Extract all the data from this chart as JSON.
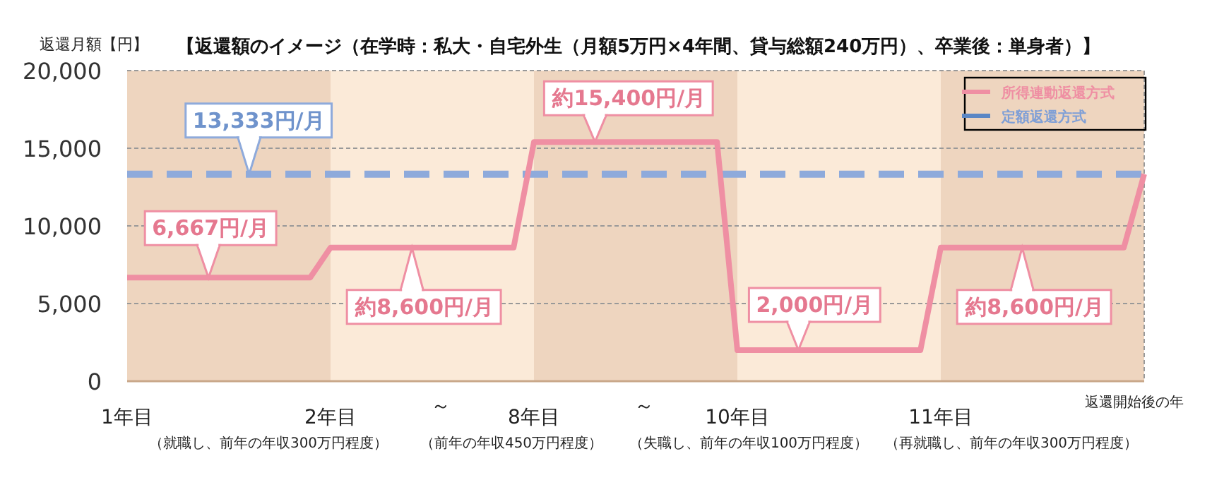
{
  "chart_data": {
    "type": "line",
    "title": "【返還額のイメージ（在学時：私大・自宅外生（月額5万円×4年間、貸与総額240万円）、卒業後：単身者）】",
    "ylabel": "返還月額【円】",
    "xlabel": "返還開始後の年",
    "categories": [
      "1年目",
      null,
      null,
      null,
      null,
      null,
      null,
      null,
      null,
      null,
      "2年目",
      null,
      null,
      null,
      null,
      null,
      null,
      null,
      null,
      null,
      "8年目",
      null,
      null,
      null,
      null,
      null,
      null,
      null,
      null,
      null,
      "10年目",
      null,
      null,
      null,
      null,
      null,
      null,
      null,
      null,
      null,
      "11年目",
      null,
      null,
      null,
      null,
      null,
      null,
      null,
      null,
      null,
      null
    ],
    "ylim": [
      0,
      20000
    ],
    "yticks": [
      {
        "value": 0,
        "label": "0"
      },
      {
        "value": 5000,
        "label": "5,000"
      },
      {
        "value": 10000,
        "label": "10,000"
      },
      {
        "value": 15000,
        "label": "15,000"
      },
      {
        "value": 20000,
        "label": "20,000"
      }
    ],
    "grid": "y",
    "legend": "top right",
    "series": [
      {
        "name": "所得連動返還方式",
        "color": "#ef8fa3",
        "line_style": "solid",
        "values": [
          6667,
          6667,
          6667,
          6667,
          6667,
          6667,
          6667,
          6667,
          6667,
          6667,
          8600,
          8600,
          8600,
          8600,
          8600,
          8600,
          8600,
          8600,
          8600,
          8600,
          15400,
          15400,
          15400,
          15400,
          15400,
          15400,
          15400,
          15400,
          15400,
          15400,
          2000,
          2000,
          2000,
          2000,
          2000,
          2000,
          2000,
          2000,
          2000,
          2000,
          8600,
          8600,
          8600,
          8600,
          8600,
          8600,
          8600,
          8600,
          8600,
          8600,
          13333
        ]
      },
      {
        "name": "定額返還方式",
        "color": "#8eaadb",
        "line_style": "dashed",
        "values": [
          13333,
          13333,
          13333,
          13333,
          13333,
          13333,
          13333,
          13333,
          13333,
          13333,
          13333,
          13333,
          13333,
          13333,
          13333,
          13333,
          13333,
          13333,
          13333,
          13333,
          13333,
          13333,
          13333,
          13333,
          13333,
          13333,
          13333,
          13333,
          13333,
          13333,
          13333,
          13333,
          13333,
          13333,
          13333,
          13333,
          13333,
          13333,
          13333,
          13333,
          13333,
          13333,
          13333,
          13333,
          13333,
          13333,
          13333,
          13333,
          13333,
          13333,
          13333
        ]
      }
    ],
    "annotations": [
      {
        "text": "13,333円/月",
        "y": 13333
      },
      {
        "text": "6,667円/月",
        "y": 6667
      },
      {
        "text": "約8,600円/月",
        "y": 8600
      },
      {
        "text": "約15,400円/月",
        "y": 15400
      },
      {
        "text": "2,000円/月",
        "y": 2000
      },
      {
        "text": "約8,600円/月",
        "y": 8600
      },
      "（就職し、前年の年収300万円程度）",
      "（前年の年収450万円程度）",
      "（失職し、前年の年収100万円程度）",
      "（再就職し、前年の年収300万円程度）",
      "～",
      "～"
    ]
  }
}
